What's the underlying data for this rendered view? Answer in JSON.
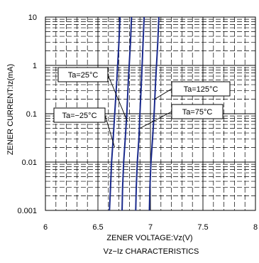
{
  "chart_data": {
    "type": "line",
    "title": "Vz−Iz CHARACTERISTICS",
    "xlabel": "ZENER VOLTAGE:Vz(V)",
    "ylabel": "ZENER CURRENT:Iz(mA)",
    "xlim": [
      6,
      8
    ],
    "ylim": [
      0.001,
      10
    ],
    "yscale": "log",
    "x_ticks": [
      "6",
      "6.5",
      "7",
      "7.5",
      "8"
    ],
    "y_ticks": [
      "0.001",
      "0.01",
      "0.1",
      "1",
      "10"
    ],
    "grid": true,
    "line_color": "#1a2a8c",
    "series": [
      {
        "name": "Ta=−25°C",
        "x": [
          6.61,
          6.62,
          6.63,
          6.645,
          6.66,
          6.68,
          6.7,
          6.71
        ],
        "y": [
          0.001,
          0.003,
          0.01,
          0.03,
          0.1,
          0.5,
          3,
          10
        ]
      },
      {
        "name": "Ta=25°C",
        "x": [
          6.73,
          6.735,
          6.745,
          6.76,
          6.775,
          6.79,
          6.81,
          6.82
        ],
        "y": [
          0.001,
          0.003,
          0.01,
          0.03,
          0.1,
          0.5,
          3,
          10
        ]
      },
      {
        "name": "Ta=75°C",
        "x": [
          6.86,
          6.865,
          6.875,
          6.89,
          6.9,
          6.915,
          6.93,
          6.94
        ],
        "y": [
          0.001,
          0.003,
          0.01,
          0.03,
          0.1,
          0.5,
          3,
          10
        ]
      },
      {
        "name": "Ta=125°C",
        "x": [
          6.99,
          6.995,
          7.005,
          7.02,
          7.035,
          7.05,
          7.07,
          7.08
        ],
        "y": [
          0.001,
          0.003,
          0.01,
          0.03,
          0.1,
          0.5,
          3,
          10
        ]
      }
    ],
    "annotations": [
      {
        "text": "Ta=25°C",
        "point": [
          6.78,
          0.07
        ]
      },
      {
        "text": "Ta=125°C",
        "point": [
          7.04,
          0.2
        ]
      },
      {
        "text": "Ta=−25°C",
        "point": [
          6.66,
          0.02
        ]
      },
      {
        "text": "Ta=75°C",
        "point": [
          6.9,
          0.05
        ]
      }
    ]
  }
}
